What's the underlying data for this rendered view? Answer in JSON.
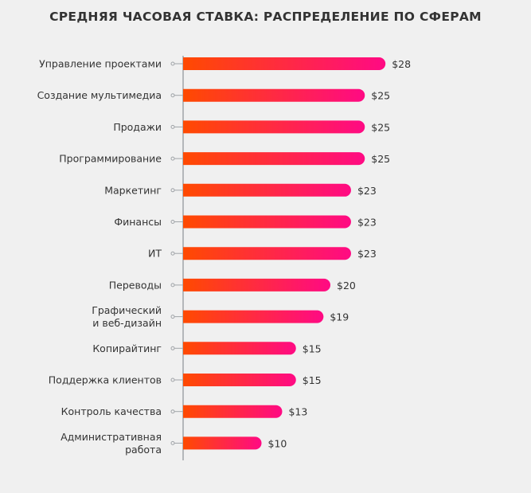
{
  "chart_data": {
    "type": "bar",
    "orientation": "horizontal",
    "title": "СРЕДНЯЯ ЧАСОВАЯ СТАВКА: РАСПРЕДЕЛЕНИЕ ПО СФЕРАМ",
    "xlabel": "",
    "ylabel": "",
    "value_prefix": "$",
    "categories": [
      [
        "Управление проектами"
      ],
      [
        "Создание мультимедиа"
      ],
      [
        "Продажи"
      ],
      [
        "Программирование"
      ],
      [
        "Маркетинг"
      ],
      [
        "Финансы"
      ],
      [
        "ИТ"
      ],
      [
        "Переводы"
      ],
      [
        "Графический",
        "и веб-дизайн"
      ],
      [
        "Копирайтинг"
      ],
      [
        "Поддержка клиентов"
      ],
      [
        "Контроль качества"
      ],
      [
        "Административная",
        "работа"
      ]
    ],
    "values": [
      28,
      25,
      25,
      25,
      23,
      23,
      23,
      20,
      19,
      15,
      15,
      13,
      10
    ],
    "value_labels": [
      "$28",
      "$25",
      "$25",
      "$25",
      "$23",
      "$23",
      "$23",
      "$20",
      "$19",
      "$15",
      "$15",
      "$13",
      "$10"
    ],
    "grid": false,
    "colors": {
      "bar_start": "#ff4a00",
      "bar_end": "#ff0a84",
      "axis": "#a0a4a8",
      "text": "#333333",
      "background": "#f0f0f0"
    }
  }
}
